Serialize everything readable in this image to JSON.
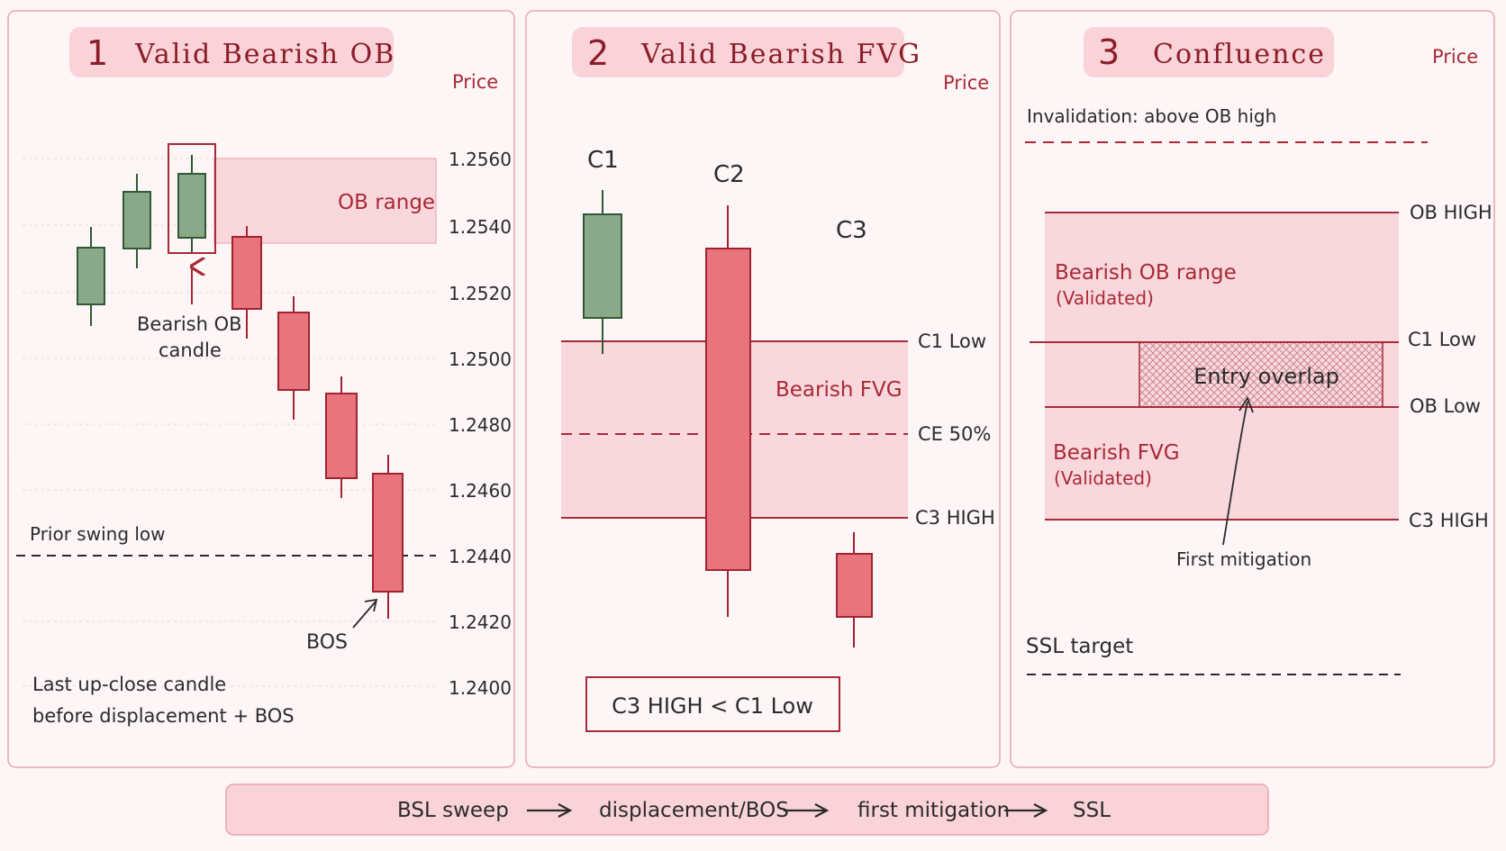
{
  "colors": {
    "panel_border": "#e7a7ae",
    "title_bg": "#f9d3d8",
    "title_text": "#8c1c29",
    "zone_fill": "#f9d8dd",
    "bear_fill": "#e8757d",
    "bear_stroke": "#a2232f",
    "bull_fill": "#8aa98a",
    "bull_stroke": "#2f5a33",
    "dark_red": "#a82a37",
    "ink": "#2b2b2b"
  },
  "panel1": {
    "number": "1",
    "title": "Valid Bearish OB",
    "price_label": "Price",
    "ticks": [
      "1.2560",
      "1.2540",
      "1.2520",
      "1.2500",
      "1.2480",
      "1.2460",
      "1.2440",
      "1.2420",
      "1.2400"
    ],
    "ob_range_label": "OB range",
    "ob_candle_label_1": "Bearish OB",
    "ob_candle_label_2": "candle",
    "prior_swing_label": "Prior swing low",
    "bos_label": "BOS",
    "note_1": "Last up-close candle",
    "note_2": "before displacement + BOS"
  },
  "panel2": {
    "number": "2",
    "title": "Valid Bearish FVG",
    "price_label": "Price",
    "c1": "C1",
    "c2": "C2",
    "c3": "C3",
    "fvg_label": "Bearish FVG",
    "c1_low": "C1 Low",
    "ce": "CE 50%",
    "c3_high": "C3 HIGH",
    "rule": "C3 HIGH < C1 Low"
  },
  "panel3": {
    "number": "3",
    "title": "Confluence",
    "price_label": "Price",
    "invalidation": "Invalidation: above OB high",
    "ob_high": "OB HIGH",
    "ob_range_1": "Bearish OB range",
    "ob_range_2": "(Validated)",
    "c1_low": "C1 Low",
    "entry": "Entry overlap",
    "ob_low": "OB Low",
    "fvg_1": "Bearish FVG",
    "fvg_2": "(Validated)",
    "c3_high": "C3 HIGH",
    "first_mitigation": "First mitigation",
    "ssl_target": "SSL target"
  },
  "flow": {
    "steps": [
      "BSL sweep",
      "displacement/BOS",
      "first mitigation",
      "SSL"
    ]
  }
}
